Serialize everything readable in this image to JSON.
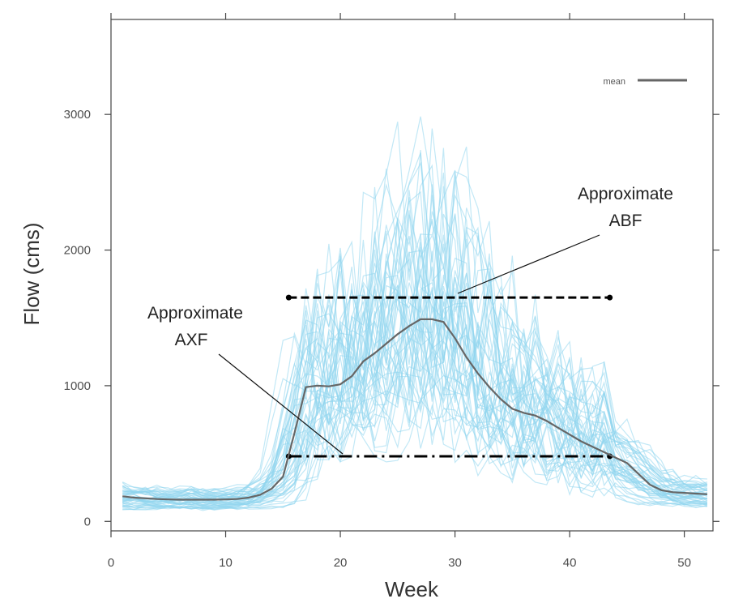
{
  "chart_data": {
    "type": "line",
    "title": "",
    "xlabel": "Week",
    "ylabel": "Flow (cms)",
    "xlim": [
      0,
      52.5
    ],
    "ylim": [
      -70,
      3700
    ],
    "x_ticks": [
      0,
      10,
      20,
      30,
      40,
      50
    ],
    "y_ticks": [
      0,
      1000,
      2000,
      3000
    ],
    "grid": false,
    "legend": {
      "position": "top-right",
      "entries": [
        {
          "label": "mean",
          "color": "#666666"
        }
      ]
    },
    "colors": {
      "ensemble": "#8fd6ef",
      "mean": "#666666",
      "reference": "#000000"
    },
    "mean_series": {
      "name": "mean",
      "x": [
        1,
        2,
        3,
        4,
        5,
        6,
        7,
        8,
        9,
        10,
        11,
        12,
        13,
        14,
        15,
        16,
        17,
        18,
        19,
        20,
        21,
        22,
        23,
        24,
        25,
        26,
        27,
        28,
        29,
        30,
        31,
        32,
        33,
        34,
        35,
        36,
        37,
        38,
        39,
        40,
        41,
        42,
        43,
        44,
        45,
        46,
        47,
        48,
        49,
        50,
        51,
        52
      ],
      "values": [
        185,
        175,
        170,
        165,
        162,
        160,
        160,
        160,
        160,
        162,
        165,
        175,
        195,
        240,
        330,
        650,
        990,
        1000,
        995,
        1010,
        1070,
        1180,
        1240,
        1310,
        1380,
        1440,
        1490,
        1490,
        1470,
        1350,
        1210,
        1090,
        990,
        900,
        830,
        800,
        780,
        740,
        690,
        640,
        590,
        550,
        510,
        470,
        430,
        350,
        270,
        230,
        215,
        210,
        205,
        200
      ]
    },
    "reference_lines": [
      {
        "name": "ABF",
        "y": 1650,
        "x_start": 15.5,
        "x_end": 43.5,
        "style": "dashed"
      },
      {
        "name": "AXF",
        "y": 480,
        "x_start": 15.5,
        "x_end": 43.5,
        "style": "dash-dot"
      }
    ],
    "annotations": [
      {
        "lines": [
          "Approximate",
          "ABF"
        ]
      },
      {
        "lines": [
          "Approximate",
          "AXF"
        ]
      }
    ]
  }
}
